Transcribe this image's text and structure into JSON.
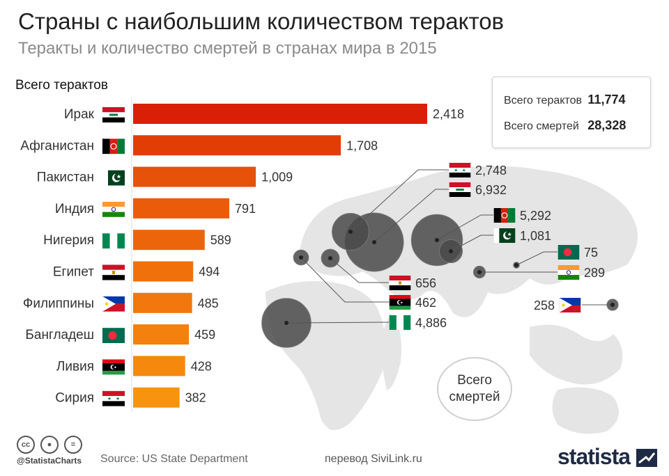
{
  "title": "Страны с наибольшим количеством терактов",
  "subtitle": "Теракты и количество смертей в странах мира в 2015",
  "stats": {
    "attacks_label": "Всего терактов",
    "attacks_value": "11,774",
    "deaths_label": "Всего смертей",
    "deaths_value": "28,328"
  },
  "deaths_badge": "Всего смертей",
  "footer": {
    "handle": "@StatistaCharts",
    "source": "Source: US State Department",
    "translation": "перевод SiviLink.ru",
    "logo": "statista"
  },
  "colors": {
    "bar_gradient": [
      "#d91f06",
      "#e13d05",
      "#e6520a",
      "#ea5c0a",
      "#ed650b",
      "#f0700c",
      "#f2770c",
      "#f4800d",
      "#f6880e",
      "#f8930f"
    ],
    "bubble": "#4a4a4a",
    "map": "#e5e5e5"
  },
  "chart_data": [
    {
      "type": "bar",
      "orientation": "horizontal",
      "title": "Всего терактов",
      "categories": [
        "Ирак",
        "Афганистан",
        "Пакистан",
        "Индия",
        "Нигерия",
        "Египет",
        "Филиппины",
        "Бангладеш",
        "Ливия",
        "Сирия"
      ],
      "values": [
        2418,
        1708,
        1009,
        791,
        589,
        494,
        485,
        459,
        428,
        382
      ],
      "value_labels": [
        "2,418",
        "1,708",
        "1,009",
        "791",
        "589",
        "494",
        "485",
        "459",
        "428",
        "382"
      ],
      "flags": [
        "flag-iraq",
        "flag-afghanistan",
        "flag-pakistan",
        "flag-india",
        "flag-nigeria",
        "flag-egypt",
        "flag-philippines",
        "flag-bangladesh",
        "flag-libya",
        "flag-syria"
      ],
      "xlim": [
        0,
        2418
      ]
    },
    {
      "type": "bubble-map",
      "title": "Всего смертей",
      "points": [
        {
          "flag": "flag-syria",
          "value": 2748,
          "label": "2,748"
        },
        {
          "flag": "flag-iraq",
          "value": 6932,
          "label": "6,932"
        },
        {
          "flag": "flag-afghanistan",
          "value": 5292,
          "label": "5,292"
        },
        {
          "flag": "flag-pakistan",
          "value": 1081,
          "label": "1,081"
        },
        {
          "flag": "flag-bangladesh",
          "value": 75,
          "label": "75"
        },
        {
          "flag": "flag-india",
          "value": 289,
          "label": "289"
        },
        {
          "flag": "flag-philippines",
          "value": 258,
          "label": "258"
        },
        {
          "flag": "flag-egypt",
          "value": 656,
          "label": "656"
        },
        {
          "flag": "flag-libya",
          "value": 462,
          "label": "462"
        },
        {
          "flag": "flag-nigeria",
          "value": 4886,
          "label": "4,886"
        }
      ]
    }
  ]
}
